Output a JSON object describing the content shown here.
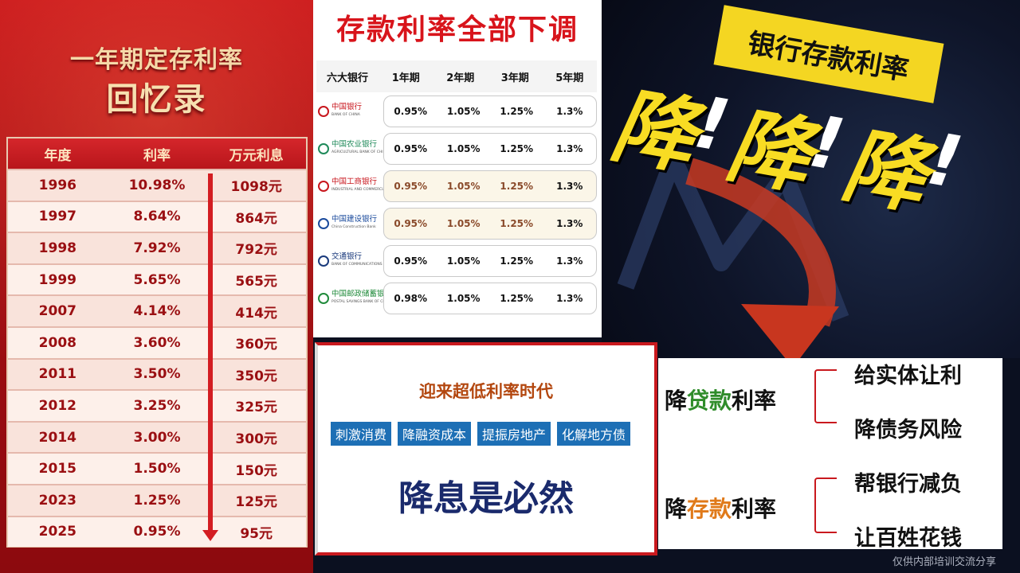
{
  "left": {
    "title": "一年期定存利率",
    "subtitle": "回忆录",
    "headers": [
      "年度",
      "利率",
      "万元利息"
    ],
    "rows": [
      [
        "1996",
        "10.98%",
        "1098元"
      ],
      [
        "1997",
        "8.64%",
        "864元"
      ],
      [
        "1998",
        "7.92%",
        "792元"
      ],
      [
        "1999",
        "5.65%",
        "565元"
      ],
      [
        "2007",
        "4.14%",
        "414元"
      ],
      [
        "2008",
        "3.60%",
        "360元"
      ],
      [
        "2011",
        "3.50%",
        "350元"
      ],
      [
        "2012",
        "3.25%",
        "325元"
      ],
      [
        "2014",
        "3.00%",
        "300元"
      ],
      [
        "2015",
        "1.50%",
        "150元"
      ],
      [
        "2023",
        "1.25%",
        "125元"
      ],
      [
        "2025",
        "0.95%",
        "95元"
      ]
    ]
  },
  "banks": {
    "headline": "存款利率全部下调",
    "headers": [
      "六大银行",
      "1年期",
      "2年期",
      "3年期",
      "5年期"
    ],
    "rows": [
      {
        "name": "中国银行",
        "en": "BANK OF CHINA",
        "color": "#c8161d",
        "rates": [
          "0.95%",
          "1.05%",
          "1.25%",
          "1.3%"
        ],
        "highlight": false
      },
      {
        "name": "中国农业银行",
        "en": "AGRICULTURAL BANK OF CHINA",
        "color": "#1f8a5a",
        "rates": [
          "0.95%",
          "1.05%",
          "1.25%",
          "1.3%"
        ],
        "highlight": false
      },
      {
        "name": "中国工商银行",
        "en": "INDUSTRIAL AND COMMERCIAL BANK OF CHINA",
        "color": "#c8161d",
        "rates": [
          "0.95%",
          "1.05%",
          "1.25%",
          "1.3%"
        ],
        "highlight": true
      },
      {
        "name": "中国建设银行",
        "en": "China Construction Bank",
        "color": "#1a4a9c",
        "rates": [
          "0.95%",
          "1.05%",
          "1.25%",
          "1.3%"
        ],
        "highlight": true
      },
      {
        "name": "交通银行",
        "en": "BANK OF COMMUNICATIONS",
        "color": "#1a3a7c",
        "rates": [
          "0.95%",
          "1.05%",
          "1.25%",
          "1.3%"
        ],
        "highlight": false
      },
      {
        "name": "中国邮政储蓄银行",
        "en": "POSTAL SAVINGS BANK OF CHINA",
        "color": "#1f8a3a",
        "rates": [
          "0.98%",
          "1.05%",
          "1.25%",
          "1.3%"
        ],
        "highlight": false
      }
    ]
  },
  "poster": {
    "banner": "银行存款利率",
    "jiang": "降",
    "excl": "!"
  },
  "era": {
    "title": "迎来超低利率时代",
    "tags": [
      "刺激消费",
      "降融资成本",
      "提振房地产",
      "化解地方债"
    ],
    "conclusion": "降息是必然"
  },
  "effects": {
    "loan": {
      "pre": "降",
      "mid": "贷款",
      "post": "利率"
    },
    "deposit": {
      "pre": "降",
      "mid": "存款",
      "post": "利率"
    },
    "loan_effects": [
      "给实体让利",
      "降债务风险"
    ],
    "deposit_effects": [
      "帮银行减负",
      "让百姓花钱"
    ]
  },
  "footer": "仅供内部培训交流分享",
  "colors": {
    "red": "#c8161d",
    "yellow": "#f4d622",
    "navy": "#1a2a6c",
    "blue_tag": "#1d6fb5"
  }
}
